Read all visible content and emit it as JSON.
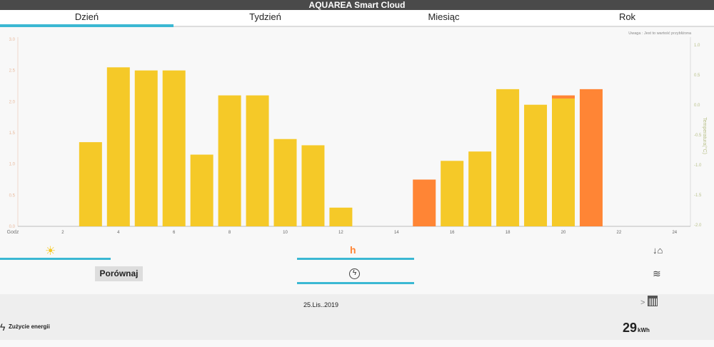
{
  "header": {
    "title": "AQUAREA Smart Cloud"
  },
  "tabs": [
    {
      "label": "Dzień",
      "active": true
    },
    {
      "label": "Tydzień"
    },
    {
      "label": "Miesiąc"
    },
    {
      "label": "Rok"
    }
  ],
  "note": "Uwaga : Jest to wartość przybliżona",
  "chart_data": {
    "type": "bar",
    "xlabel": "Godz",
    "ylabel_right": "Temperatura(°C)",
    "x_ticks": [
      2,
      4,
      6,
      8,
      10,
      12,
      14,
      16,
      18,
      20,
      22,
      24
    ],
    "y_ticks": [
      0.0,
      0.5,
      1.0,
      1.5,
      2.0,
      2.5,
      3.0
    ],
    "y_right_ticks": [
      1.0,
      0.5,
      0.0,
      -0.5,
      -1.0,
      -1.5,
      -2.0
    ],
    "ylim": [
      0,
      3.0
    ],
    "y_right_lim": [
      -2.0,
      1.0
    ],
    "x": [
      3,
      4,
      5,
      6,
      7,
      8,
      9,
      10,
      11,
      12,
      15,
      16,
      17,
      18,
      19,
      20,
      21
    ],
    "series": [
      {
        "color": "#f5c928",
        "values": [
          1.35,
          2.55,
          2.5,
          2.5,
          1.15,
          2.1,
          2.1,
          1.4,
          1.3,
          0.3,
          0,
          1.05,
          1.2,
          2.2,
          1.95,
          2.05,
          0
        ]
      },
      {
        "color": "#ff8535",
        "values": [
          0,
          0,
          0,
          0,
          0,
          0,
          0,
          0,
          0,
          0,
          0.75,
          0,
          0,
          0,
          0,
          0.05,
          2.2
        ]
      }
    ],
    "stacked": true,
    "grid": false
  },
  "controls": {
    "compare_label": "Porównaj"
  },
  "icons": {
    "heating": "sun-icon",
    "water": "tap-icon",
    "outdoor": "house-temp-icon",
    "energy": "lightning-circle-icon",
    "layers": "layers-icon",
    "calendar": "calendar-icon"
  },
  "footer": {
    "date": "25.Lis..2019",
    "next": ">",
    "energy_label": "Zużycie energii",
    "energy_value": "29",
    "energy_unit": "kWh"
  }
}
